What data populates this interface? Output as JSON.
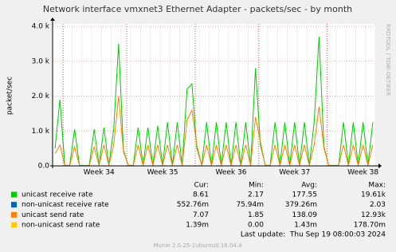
{
  "chart_data": {
    "type": "line",
    "title": "Network interface vmxnet3 Ethernet Adapter - packets/sec - by month",
    "y_label": "packet/sec",
    "side_text": "RRDTOOL / TOBI OETIKER",
    "footer": "Munin 2.0.25-2ubuntu0.16.04.4",
    "last_update": "Last update:  Thu Sep 19 08:00:03 2024",
    "ylim": [
      0,
      4000
    ],
    "yticks": [
      {
        "value": 0,
        "label": "0.0"
      },
      {
        "value": 1000,
        "label": "1.0 k"
      },
      {
        "value": 2000,
        "label": "2.0 k"
      },
      {
        "value": 3000,
        "label": "3.0 k"
      },
      {
        "value": 4000,
        "label": "4.0 k"
      }
    ],
    "grid": true,
    "categories": [
      null,
      null,
      null,
      null,
      null,
      null,
      null,
      null,
      null,
      "Week 34",
      null,
      null,
      null,
      null,
      null,
      null,
      null,
      null,
      null,
      null,
      null,
      null,
      "Week 35",
      null,
      null,
      null,
      null,
      null,
      null,
      null,
      null,
      null,
      null,
      null,
      null,
      null,
      "Week 36",
      null,
      null,
      null,
      null,
      null,
      null,
      null,
      null,
      null,
      null,
      null,
      null,
      "Week 37",
      null,
      null,
      null,
      null,
      null,
      null,
      null,
      null,
      null,
      null,
      null,
      null,
      null,
      "Week 38",
      null,
      null
    ],
    "series": [
      {
        "name": "unicast receive rate",
        "color": "#00cc00",
        "values": [
          500,
          1900,
          15,
          15,
          1050,
          15,
          15,
          15,
          1050,
          15,
          1100,
          15,
          1050,
          3500,
          450,
          15,
          15,
          1100,
          15,
          1100,
          15,
          1150,
          15,
          1250,
          15,
          1250,
          15,
          2200,
          2350,
          500,
          15,
          1250,
          15,
          1250,
          15,
          1250,
          15,
          1250,
          15,
          1250,
          15,
          2800,
          600,
          15,
          15,
          1250,
          15,
          1250,
          15,
          1250,
          15,
          1250,
          15,
          1250,
          3700,
          550,
          15,
          15,
          15,
          1250,
          15,
          1250,
          15,
          1250,
          15,
          1250
        ]
      },
      {
        "name": "non-unicast receive rate",
        "color": "#0066b3",
        "values": [
          0.4,
          0.4,
          0.4,
          0.4,
          0.4,
          0.4,
          0.4,
          0.4,
          0.4,
          0.4,
          0.4,
          0.4,
          0.4,
          0.4,
          0.4,
          0.4,
          0.4,
          0.4,
          0.4,
          0.4,
          0.4,
          0.4,
          0.4,
          0.4,
          0.4,
          0.4,
          0.4,
          0.4,
          0.4,
          0.4,
          0.4,
          0.4,
          0.4,
          0.4,
          0.4,
          0.4,
          0.4,
          0.4,
          0.4,
          0.4,
          0.4,
          0.4,
          0.4,
          0.4,
          0.4,
          0.4,
          0.4,
          0.4,
          0.4,
          0.4,
          0.4,
          0.4,
          0.4,
          0.4,
          0.4,
          0.4,
          0.4,
          0.4,
          0.4,
          0.4,
          0.4,
          0.4,
          0.4,
          0.4,
          0.4,
          0.4
        ]
      },
      {
        "name": "unicast send rate",
        "color": "#ff8000",
        "values": [
          350,
          600,
          10,
          10,
          550,
          10,
          10,
          10,
          550,
          10,
          600,
          10,
          600,
          2000,
          400,
          10,
          10,
          600,
          10,
          600,
          10,
          600,
          10,
          600,
          10,
          600,
          10,
          1300,
          1600,
          600,
          10,
          600,
          10,
          600,
          10,
          600,
          10,
          600,
          10,
          600,
          10,
          1400,
          700,
          10,
          10,
          600,
          10,
          600,
          10,
          600,
          10,
          600,
          10,
          600,
          1700,
          500,
          10,
          10,
          10,
          600,
          10,
          600,
          10,
          600,
          10,
          600
        ]
      },
      {
        "name": "non-unicast send rate",
        "color": "#ffcc00",
        "values": [
          0,
          0,
          0,
          0,
          0,
          0,
          0,
          0,
          0,
          0,
          0,
          0,
          0,
          0,
          0,
          0,
          0,
          0,
          0,
          0,
          0,
          0,
          0,
          0,
          0,
          0,
          0,
          0,
          0,
          0,
          0,
          0,
          0,
          0,
          0,
          0,
          0,
          0,
          0,
          0,
          0,
          0,
          0,
          0,
          0,
          0,
          0,
          0,
          0,
          0,
          0,
          0,
          0,
          0,
          0,
          0,
          0,
          0,
          0,
          0,
          0,
          0,
          0,
          0,
          0,
          0
        ]
      }
    ],
    "stats": {
      "headers": [
        "Cur:",
        "Min:",
        "Avg:",
        "Max:"
      ],
      "rows": [
        [
          "8.61",
          "2.17",
          "177.55",
          "19.61k"
        ],
        [
          "552.76m",
          "75.94m",
          "379.26m",
          "2.03"
        ],
        [
          "7.07",
          "1.85",
          "138.09",
          "12.93k"
        ],
        [
          "1.39m",
          "0.00",
          "1.43m",
          "178.70m"
        ]
      ]
    }
  }
}
